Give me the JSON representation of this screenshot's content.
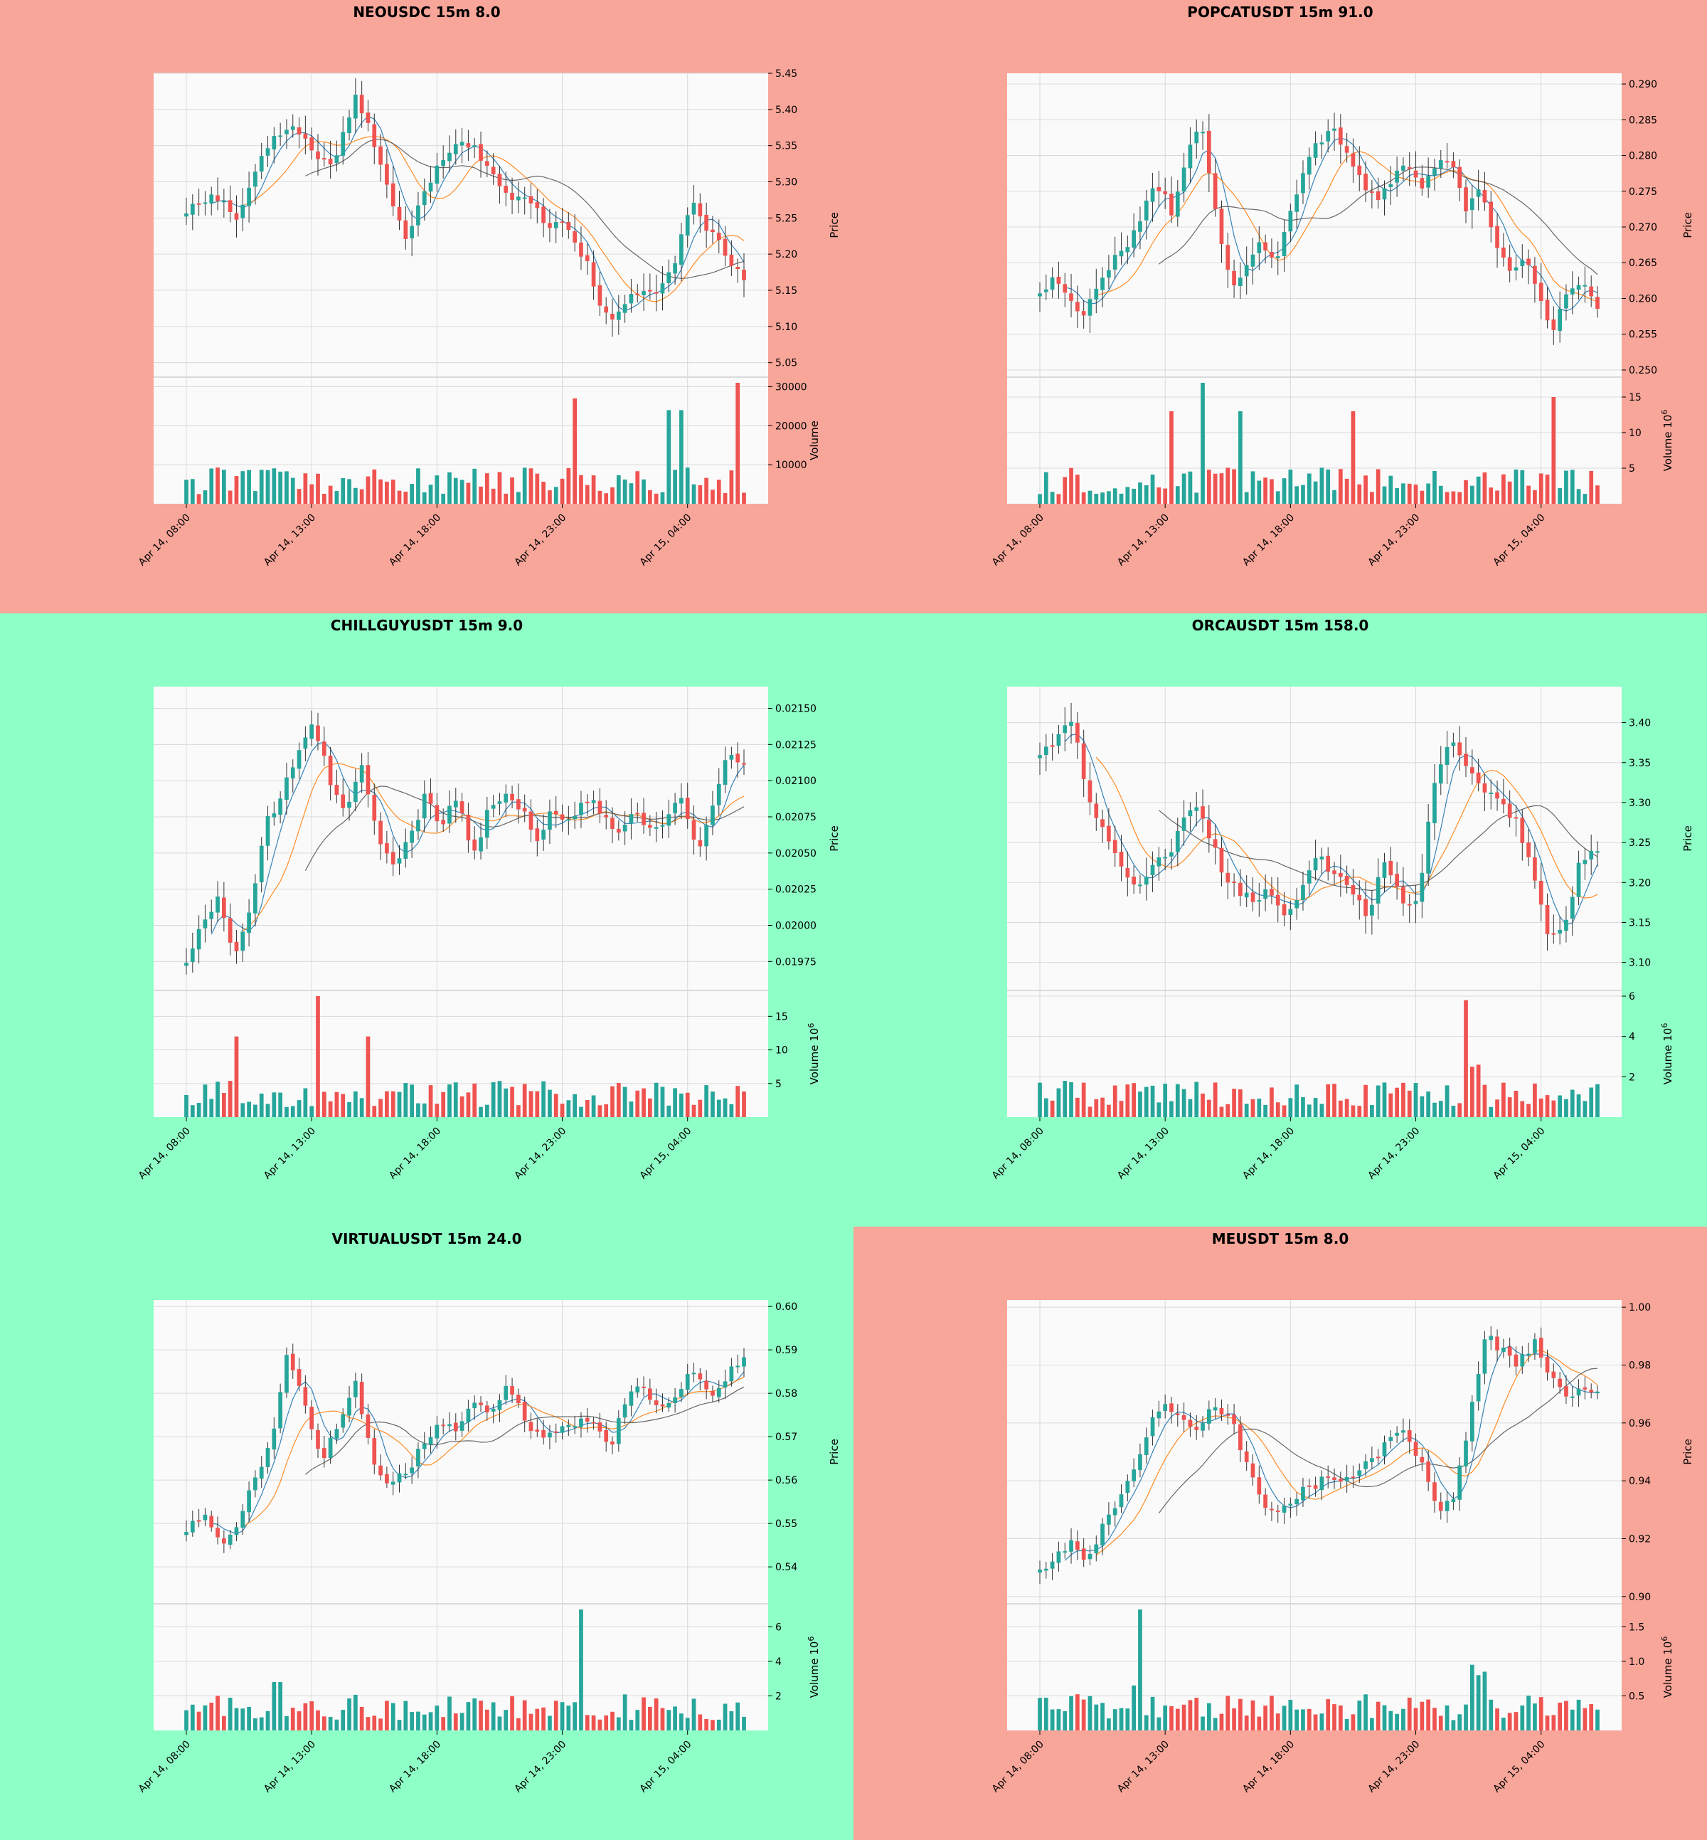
{
  "colors": {
    "up": "#26a69a",
    "down": "#ef5350",
    "down_panel_bg": "#f8a69a",
    "up_panel_bg": "#8effc6",
    "plot_bg": "#fafafa",
    "grid": "#d9d9d9",
    "ma_fast": "#1f77b4",
    "ma_mid": "#ff7f0e",
    "ma_slow": "#555555"
  },
  "chart_data": [
    {
      "type": "candlestick",
      "title": "NEOUSDC 15m 8.0",
      "panel_color": "down",
      "x_ticks": [
        "Apr 14, 08:00",
        "Apr 14, 13:00",
        "Apr 14, 18:00",
        "Apr 14, 23:00",
        "Apr 15, 04:00"
      ],
      "price": {
        "ylabel": "Price",
        "ticks": [
          "5.05",
          "5.10",
          "5.15",
          "5.20",
          "5.25",
          "5.30",
          "5.35",
          "5.40",
          "5.45"
        ],
        "ylim": [
          5.03,
          5.45
        ],
        "close_path": [
          5.26,
          5.27,
          5.28,
          5.27,
          5.25,
          5.3,
          5.35,
          5.36,
          5.38,
          5.36,
          5.34,
          5.32,
          5.36,
          5.42,
          5.38,
          5.32,
          5.26,
          5.22,
          5.28,
          5.31,
          5.34,
          5.36,
          5.35,
          5.33,
          5.3,
          5.27,
          5.28,
          5.26,
          5.24,
          5.25,
          5.22,
          5.18,
          5.12,
          5.11,
          5.14,
          5.15,
          5.14,
          5.16,
          5.21,
          5.27,
          5.24,
          5.22,
          5.19,
          5.17
        ],
        "wick_range": [
          0.01,
          0.035
        ]
      },
      "volume": {
        "ylabel": "Volume",
        "ticks": [
          "10000",
          "20000",
          "30000"
        ],
        "ylim": [
          0,
          31000
        ],
        "tick_values": [
          10000,
          20000,
          30000
        ],
        "spikes": {
          "62": 27000,
          "88": 31000,
          "77": 24000,
          "79": 24000
        }
      }
    },
    {
      "type": "candlestick",
      "title": "POPCATUSDT 15m 91.0",
      "panel_color": "down",
      "x_ticks": [
        "Apr 14, 08:00",
        "Apr 14, 13:00",
        "Apr 14, 18:00",
        "Apr 14, 23:00",
        "Apr 15, 04:00"
      ],
      "price": {
        "ylabel": "Price",
        "ticks": [
          "0.250",
          "0.255",
          "0.260",
          "0.265",
          "0.270",
          "0.275",
          "0.280",
          "0.285",
          "0.290"
        ],
        "ylim": [
          0.249,
          0.2915
        ],
        "close_path": [
          0.261,
          0.263,
          0.26,
          0.258,
          0.262,
          0.265,
          0.268,
          0.272,
          0.276,
          0.272,
          0.28,
          0.285,
          0.272,
          0.262,
          0.264,
          0.268,
          0.265,
          0.272,
          0.278,
          0.282,
          0.284,
          0.28,
          0.276,
          0.274,
          0.277,
          0.279,
          0.275,
          0.279,
          0.28,
          0.272,
          0.276,
          0.268,
          0.264,
          0.266,
          0.26,
          0.255,
          0.262,
          0.262,
          0.258
        ],
        "wick_range": [
          0.001,
          0.004
        ]
      },
      "volume": {
        "ylabel": "Volume  $10^6$",
        "ticks": [
          "5",
          "10",
          "15"
        ],
        "ylim": [
          0,
          17
        ],
        "tick_values": [
          5,
          10,
          15
        ],
        "spikes": {
          "26": 17,
          "21": 13,
          "32": 13,
          "50": 13,
          "82": 15
        }
      }
    },
    {
      "type": "candlestick",
      "title": "CHILLGUYUSDT 15m 9.0",
      "panel_color": "up",
      "x_ticks": [
        "Apr 14, 08:00",
        "Apr 14, 13:00",
        "Apr 14, 18:00",
        "Apr 14, 23:00",
        "Apr 15, 04:00"
      ],
      "price": {
        "ylabel": "Price",
        "ticks": [
          "0.01975",
          "0.02000",
          "0.02025",
          "0.02050",
          "0.02075",
          "0.02100",
          "0.02125",
          "0.02150"
        ],
        "ylim": [
          0.01955,
          0.02165
        ],
        "close_path": [
          0.01975,
          0.02,
          0.0202,
          0.0198,
          0.0201,
          0.0207,
          0.0209,
          0.0212,
          0.0214,
          0.021,
          0.0208,
          0.0211,
          0.0206,
          0.0204,
          0.0206,
          0.0209,
          0.0207,
          0.0209,
          0.0205,
          0.0208,
          0.0209,
          0.0208,
          0.0206,
          0.0208,
          0.0207,
          0.0209,
          0.0208,
          0.0206,
          0.0208,
          0.0207,
          0.0207,
          0.0209,
          0.0205,
          0.0208,
          0.0212,
          0.0211
        ],
        "wick_range": [
          5e-05,
          0.00015
        ]
      },
      "volume": {
        "ylabel": "Volume  $10^6$",
        "ticks": [
          "5",
          "10",
          "15"
        ],
        "ylim": [
          0,
          18
        ],
        "tick_values": [
          5,
          10,
          15
        ],
        "spikes": {
          "21": 18,
          "8": 12,
          "29": 12
        }
      }
    },
    {
      "type": "candlestick",
      "title": "ORCAUSDT 15m 158.0",
      "panel_color": "up",
      "x_ticks": [
        "Apr 14, 08:00",
        "Apr 14, 13:00",
        "Apr 14, 18:00",
        "Apr 14, 23:00",
        "Apr 15, 04:00"
      ],
      "price": {
        "ylabel": "Price",
        "ticks": [
          "3.10",
          "3.15",
          "3.20",
          "3.25",
          "3.30",
          "3.35",
          "3.40"
        ],
        "ylim": [
          3.065,
          3.445
        ],
        "close_path": [
          3.36,
          3.38,
          3.4,
          3.3,
          3.26,
          3.22,
          3.19,
          3.22,
          3.24,
          3.3,
          3.28,
          3.22,
          3.19,
          3.18,
          3.19,
          3.15,
          3.2,
          3.23,
          3.21,
          3.19,
          3.16,
          3.23,
          3.18,
          3.17,
          3.32,
          3.38,
          3.34,
          3.32,
          3.3,
          3.28,
          3.22,
          3.13,
          3.15,
          3.23,
          3.24
        ],
        "wick_range": [
          0.01,
          0.035
        ]
      },
      "volume": {
        "ylabel": "Volume  $10^6$",
        "ticks": [
          "2",
          "4",
          "6"
        ],
        "ylim": [
          0,
          6
        ],
        "tick_values": [
          2,
          4,
          6
        ],
        "spikes": {
          "68": 5.8,
          "69": 2.5,
          "70": 2.6,
          "71": 1.6
        }
      }
    },
    {
      "type": "candlestick",
      "title": "VIRTUALUSDT 15m 24.0",
      "panel_color": "up",
      "x_ticks": [
        "Apr 14, 08:00",
        "Apr 14, 13:00",
        "Apr 14, 18:00",
        "Apr 14, 23:00",
        "Apr 15, 04:00"
      ],
      "price": {
        "ylabel": "Price",
        "ticks": [
          "0.54",
          "0.55",
          "0.56",
          "0.57",
          "0.58",
          "0.59",
          "0.60"
        ],
        "ylim": [
          0.5315,
          0.6015
        ],
        "close_path": [
          0.548,
          0.552,
          0.545,
          0.55,
          0.56,
          0.568,
          0.59,
          0.578,
          0.565,
          0.572,
          0.583,
          0.565,
          0.558,
          0.562,
          0.568,
          0.574,
          0.572,
          0.577,
          0.575,
          0.582,
          0.574,
          0.57,
          0.572,
          0.573,
          0.575,
          0.567,
          0.578,
          0.582,
          0.575,
          0.58,
          0.586,
          0.578,
          0.584,
          0.589
        ],
        "wick_range": [
          0.001,
          0.004
        ]
      },
      "volume": {
        "ylabel": "Volume  $10^6$",
        "ticks": [
          "2",
          "4",
          "6"
        ],
        "ylim": [
          0,
          7
        ],
        "tick_values": [
          2,
          4,
          6
        ],
        "spikes": {
          "63": 7,
          "14": 2.8,
          "15": 2.8
        }
      }
    },
    {
      "type": "candlestick",
      "title": "MEUSDT 15m 8.0",
      "panel_color": "down",
      "x_ticks": [
        "Apr 14, 08:00",
        "Apr 14, 13:00",
        "Apr 14, 18:00",
        "Apr 14, 23:00",
        "Apr 15, 04:00"
      ],
      "price": {
        "ylabel": "Price",
        "ticks": [
          "0.90",
          "0.92",
          "0.94",
          "0.96",
          "0.98",
          "1.00"
        ],
        "ylim": [
          0.8975,
          1.0025
        ],
        "close_path": [
          0.909,
          0.913,
          0.918,
          0.912,
          0.925,
          0.935,
          0.945,
          0.96,
          0.966,
          0.96,
          0.958,
          0.966,
          0.962,
          0.945,
          0.932,
          0.93,
          0.935,
          0.938,
          0.941,
          0.94,
          0.943,
          0.948,
          0.954,
          0.957,
          0.945,
          0.928,
          0.935,
          0.962,
          0.99,
          0.985,
          0.98,
          0.988,
          0.975,
          0.97,
          0.972,
          0.969
        ],
        "wick_range": [
          0.002,
          0.006
        ]
      },
      "volume": {
        "ylabel": "Volume  $10^6$",
        "ticks": [
          "0.5",
          "1.0",
          "1.5"
        ],
        "ylim": [
          0,
          1.75
        ],
        "tick_values": [
          0.5,
          1.0,
          1.5
        ],
        "spikes": {
          "16": 1.75,
          "15": 0.65,
          "30": 0.5,
          "69": 0.95,
          "70": 0.8,
          "71": 0.85
        }
      }
    }
  ]
}
